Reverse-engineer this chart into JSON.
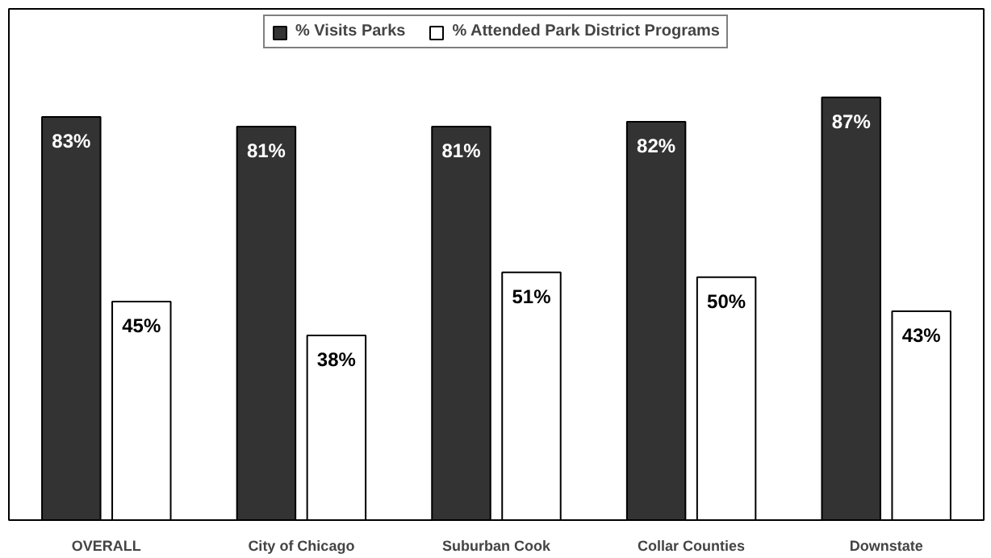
{
  "chart_data": {
    "type": "bar",
    "categories": [
      "OVERALL",
      "City of Chicago",
      "Suburban Cook",
      "Collar Counties",
      "Downstate"
    ],
    "series": [
      {
        "name": "% Visits Parks",
        "color": "#333333",
        "values": [
          83,
          81,
          81,
          82,
          87
        ],
        "value_labels": [
          "83%",
          "81%",
          "81%",
          "82%",
          "87%"
        ]
      },
      {
        "name": "% Attended Park District Programs",
        "color": "#ffffff",
        "values": [
          45,
          38,
          51,
          50,
          43
        ],
        "value_labels": [
          "45%",
          "38%",
          "51%",
          "50%",
          "43%"
        ]
      }
    ],
    "tick_labels": "x",
    "grid": false,
    "legend": "top"
  }
}
